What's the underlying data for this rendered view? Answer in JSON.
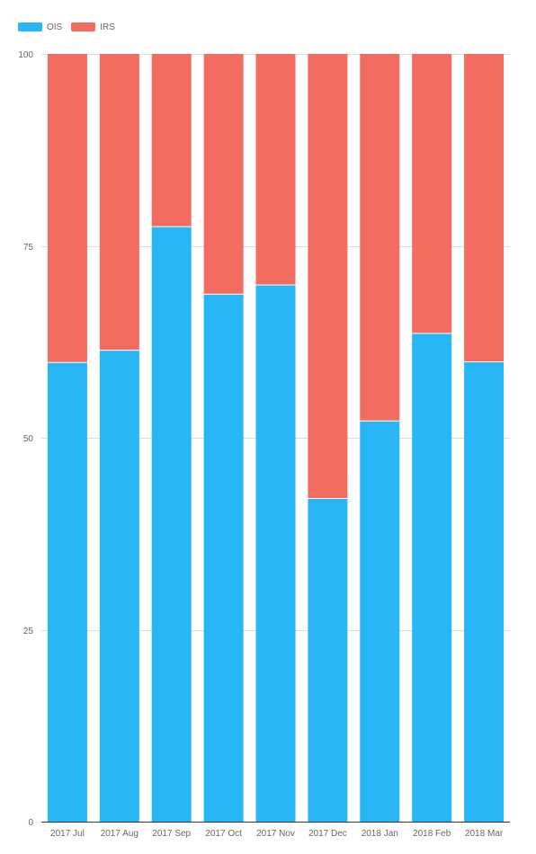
{
  "legend": [
    {
      "name": "OIS",
      "color": "#29b6f6"
    },
    {
      "name": "IRS",
      "color": "#f36c60"
    }
  ],
  "chart_data": {
    "type": "bar",
    "stacked": true,
    "categories": [
      "2017 Jul",
      "2017 Aug",
      "2017 Sep",
      "2017 Oct",
      "2017 Nov",
      "2017 Dec",
      "2018 Jan",
      "2018 Feb",
      "2018 Mar"
    ],
    "series": [
      {
        "name": "OIS",
        "color": "#29b6f6",
        "values": [
          59.8,
          61.4,
          77.5,
          68.7,
          69.9,
          42.1,
          52.2,
          63.6,
          59.9
        ]
      },
      {
        "name": "IRS",
        "color": "#f36c60",
        "values": [
          40.2,
          38.6,
          22.5,
          31.3,
          30.1,
          57.9,
          47.8,
          36.4,
          40.1
        ]
      }
    ],
    "yticks": [
      "0",
      "25",
      "50",
      "75",
      "100"
    ],
    "ylim": [
      0,
      100
    ],
    "grid": true,
    "legend_position": "top-left",
    "title": "",
    "xlabel": "",
    "ylabel": ""
  }
}
